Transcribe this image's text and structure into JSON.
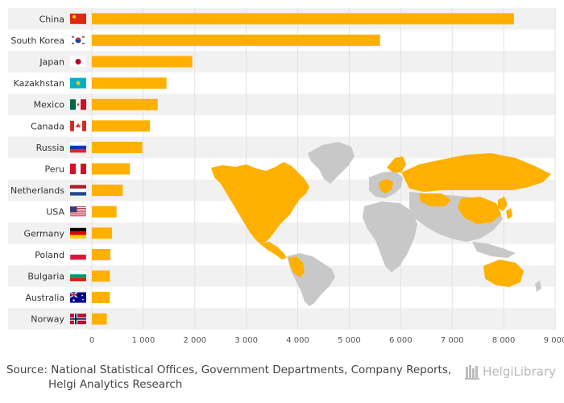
{
  "chart_data": {
    "type": "bar",
    "orientation": "horizontal",
    "categories": [
      "China",
      "South Korea",
      "Japan",
      "Kazakhstan",
      "Mexico",
      "Canada",
      "Russia",
      "Peru",
      "Netherlands",
      "USA",
      "Germany",
      "Poland",
      "Bulgaria",
      "Australia",
      "Norway"
    ],
    "flags": [
      "china-flag-icon",
      "south-korea-flag-icon",
      "japan-flag-icon",
      "kazakhstan-flag-icon",
      "mexico-flag-icon",
      "canada-flag-icon",
      "russia-flag-icon",
      "peru-flag-icon",
      "netherlands-flag-icon",
      "usa-flag-icon",
      "germany-flag-icon",
      "poland-flag-icon",
      "bulgaria-flag-icon",
      "australia-flag-icon",
      "norway-flag-icon"
    ],
    "values": [
      8200,
      5600,
      1950,
      1450,
      1280,
      1130,
      980,
      740,
      600,
      480,
      390,
      360,
      350,
      350,
      290
    ],
    "xlim": [
      0,
      9000
    ],
    "xticks": [
      0,
      1000,
      2000,
      3000,
      4000,
      5000,
      6000,
      7000,
      8000,
      9000
    ],
    "xtick_labels": [
      "0",
      "1 000",
      "2 000",
      "3 000",
      "4 000",
      "5 000",
      "6 000",
      "7 000",
      "8 000",
      "9 000"
    ],
    "title": "",
    "xlabel": "",
    "ylabel": "",
    "grid": "vertical",
    "bar_color": "#FFB000",
    "band_color": "#F1F1F1",
    "map_highlight_color": "#FFB000",
    "map_base_color": "#C8C8C8"
  },
  "footer": {
    "source_label": "Source:",
    "source_line1": "National Statistical Offices, Government Departments, Company Reports,",
    "source_line2": "Helgi Analytics Research",
    "logo_text": "HelgiLibrary"
  }
}
